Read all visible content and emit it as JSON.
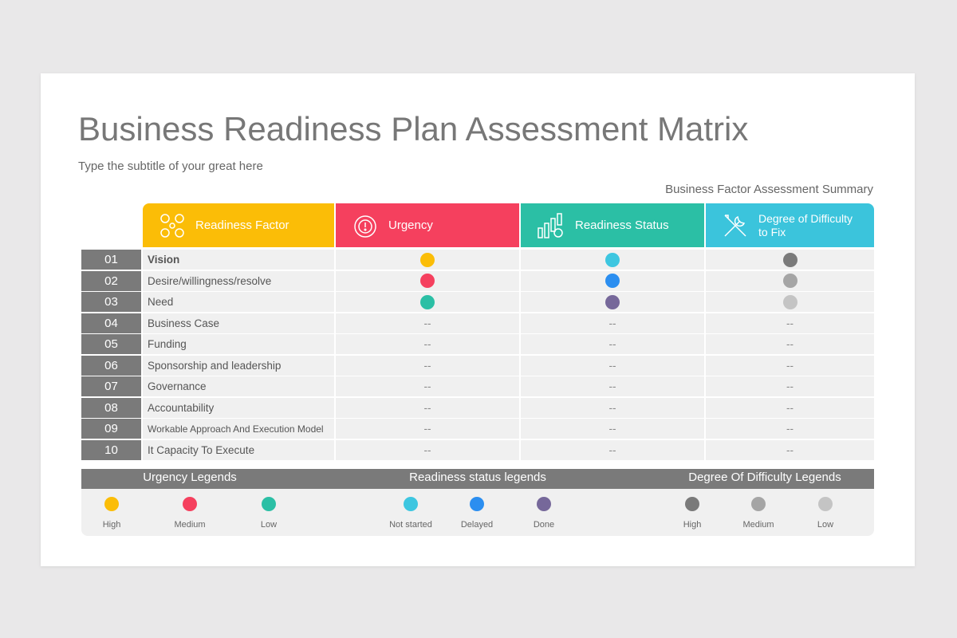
{
  "header": {
    "title": "Business Readiness Plan Assessment Matrix",
    "subtitle": "Type the subtitle of your great here"
  },
  "table": {
    "caption": "Business Factor Assessment Summary",
    "headers": [
      "Readiness Factor",
      "Urgency",
      "Readiness Status",
      "Degree of Difficulty to Fix"
    ],
    "rows": [
      [
        "01",
        "Vision",
        "High",
        "Not started",
        "High"
      ],
      [
        "02",
        "Desire/willingness/resolve",
        "Medium",
        "Delayed",
        "Medium"
      ],
      [
        "03",
        "Need",
        "Low",
        "Done",
        "Low"
      ],
      [
        "04",
        "Business Case",
        "--",
        "--",
        "--"
      ],
      [
        "05",
        "Funding",
        "--",
        "--",
        "--"
      ],
      [
        "06",
        "Sponsorship and leadership",
        "--",
        "--",
        "--"
      ],
      [
        "07",
        "Governance",
        "--",
        "--",
        "--"
      ],
      [
        "08",
        "Accountability",
        "--",
        "--",
        "--"
      ],
      [
        "09",
        "Workable Approach And Execution Model",
        "--",
        "--",
        "--"
      ],
      [
        "10",
        "It Capacity To Execute",
        "--",
        "--",
        "--"
      ]
    ]
  },
  "legends": [
    {
      "title": "Urgency Legends",
      "items": [
        {
          "label": "High",
          "color": "#fbbd07"
        },
        {
          "label": "Medium",
          "color": "#f5405e"
        },
        {
          "label": "Low",
          "color": "#2bbfa5"
        }
      ]
    },
    {
      "title": "Readiness status legends",
      "items": [
        {
          "label": "Not started",
          "color": "#3dc6e0"
        },
        {
          "label": "Delayed",
          "color": "#2b8ef0"
        },
        {
          "label": "Done",
          "color": "#76689a"
        }
      ]
    },
    {
      "title": "Degree Of Difficulty Legends",
      "items": [
        {
          "label": "High",
          "color": "#7a7a7a"
        },
        {
          "label": "Medium",
          "color": "#a5a5a5"
        },
        {
          "label": "Low",
          "color": "#c4c4c4"
        }
      ]
    }
  ]
}
